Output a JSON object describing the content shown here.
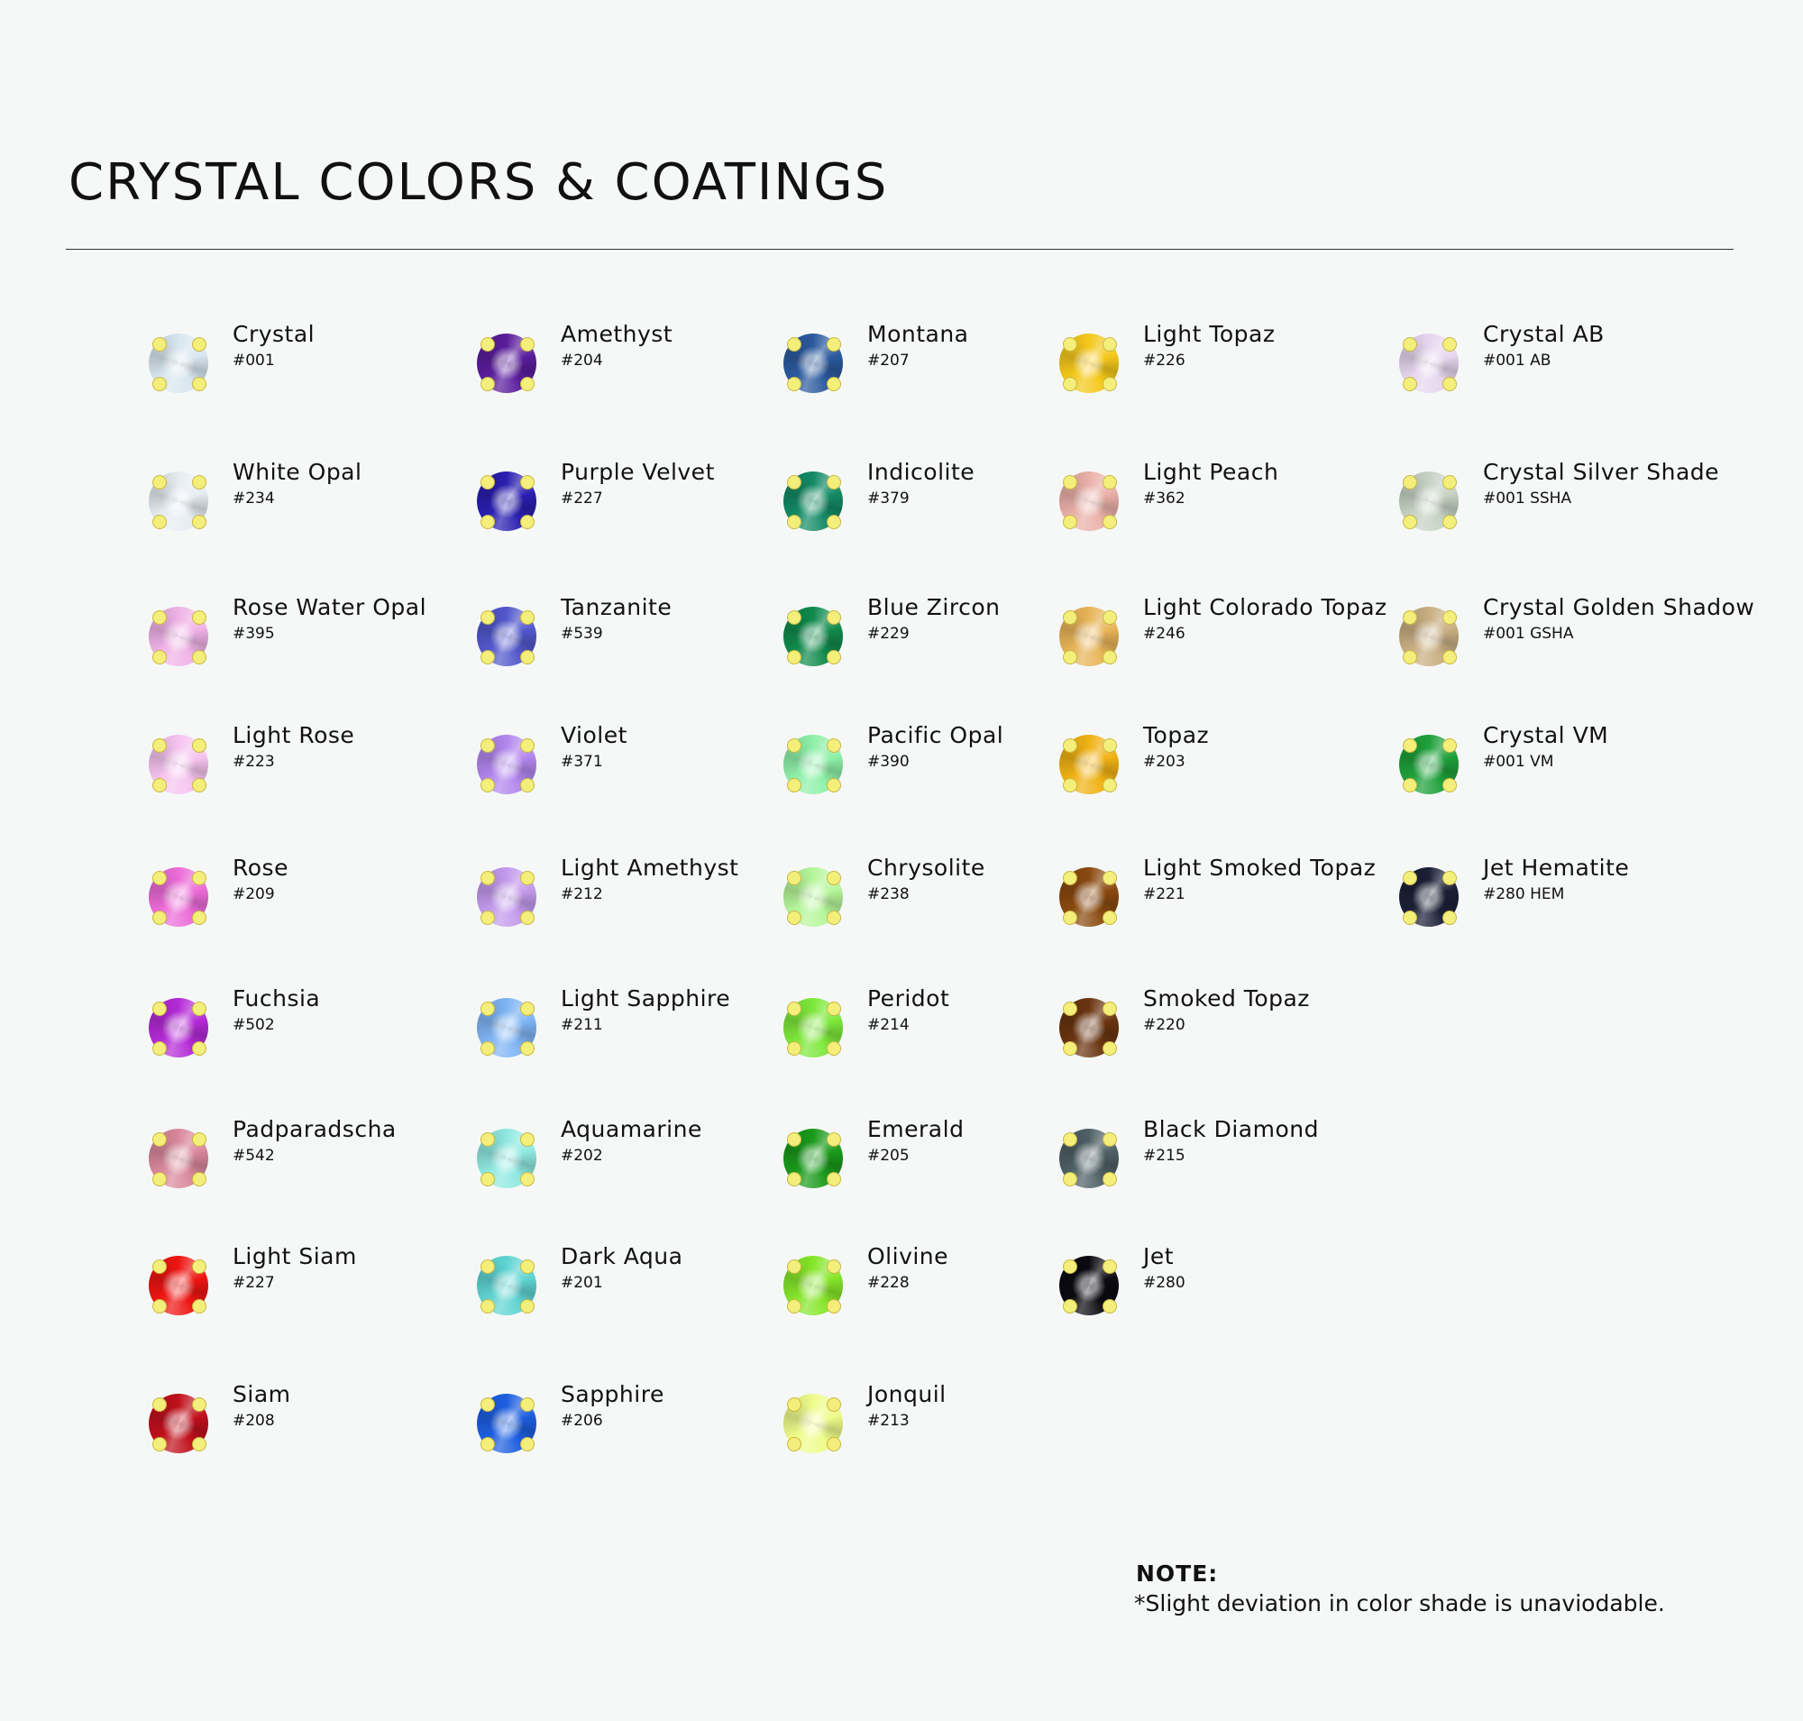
{
  "title": "CRYSTAL COLORS & COATINGS",
  "columns": [
    [
      {
        "name": "Crystal",
        "code": "#001",
        "color": "#d8e6ef"
      },
      {
        "name": "White Opal",
        "code": "#234",
        "color": "#e6ecf2"
      },
      {
        "name": "Rose Water Opal",
        "code": "#395",
        "color": "#efb2e6"
      },
      {
        "name": "Light Rose",
        "code": "#223",
        "color": "#f6c4f0"
      },
      {
        "name": "Rose",
        "code": "#209",
        "color": "#ec6cd8"
      },
      {
        "name": "Fuchsia",
        "code": "#502",
        "color": "#b42ad6"
      },
      {
        "name": "Padparadscha",
        "code": "#542",
        "color": "#d9889c"
      },
      {
        "name": "Light Siam",
        "code": "#227",
        "color": "#ee1512"
      },
      {
        "name": "Siam",
        "code": "#208",
        "color": "#c0101c"
      }
    ],
    [
      {
        "name": "Amethyst",
        "code": "#204",
        "color": "#5a1d9c"
      },
      {
        "name": "Purple Velvet",
        "code": "#227",
        "color": "#2a1fb0"
      },
      {
        "name": "Tanzanite",
        "code": "#539",
        "color": "#5258cc"
      },
      {
        "name": "Violet",
        "code": "#371",
        "color": "#b286ee"
      },
      {
        "name": "Light Amethyst",
        "code": "#212",
        "color": "#c39aec"
      },
      {
        "name": "Light Sapphire",
        "code": "#211",
        "color": "#7fb4f4"
      },
      {
        "name": "Aquamarine",
        "code": "#202",
        "color": "#8ee8e0"
      },
      {
        "name": "Dark Aqua",
        "code": "#201",
        "color": "#5fd4d2"
      },
      {
        "name": "Sapphire",
        "code": "#206",
        "color": "#1d5ee0"
      }
    ],
    [
      {
        "name": "Montana",
        "code": "#207",
        "color": "#2b5a9e"
      },
      {
        "name": "Indicolite",
        "code": "#379",
        "color": "#138a64"
      },
      {
        "name": "Blue Zircon",
        "code": "#229",
        "color": "#108a4c"
      },
      {
        "name": "Pacific Opal",
        "code": "#390",
        "color": "#8ef0a8"
      },
      {
        "name": "Chrysolite",
        "code": "#238",
        "color": "#b6f69a"
      },
      {
        "name": "Peridot",
        "code": "#214",
        "color": "#7de83a"
      },
      {
        "name": "Emerald",
        "code": "#205",
        "color": "#1a9a1a"
      },
      {
        "name": "Olivine",
        "code": "#228",
        "color": "#86e62a"
      },
      {
        "name": "Jonquil",
        "code": "#213",
        "color": "#eefc8a"
      }
    ],
    [
      {
        "name": "Light Topaz",
        "code": "#226",
        "color": "#f4c81a"
      },
      {
        "name": "Light Peach",
        "code": "#362",
        "color": "#eab0a8"
      },
      {
        "name": "Light Colorado Topaz",
        "code": "#246",
        "color": "#e8b458"
      },
      {
        "name": "Topaz",
        "code": "#203",
        "color": "#f0b214"
      },
      {
        "name": "Light Smoked Topaz",
        "code": "#221",
        "color": "#8a4a10"
      },
      {
        "name": "Smoked Topaz",
        "code": "#220",
        "color": "#6a3410"
      },
      {
        "name": "Black Diamond",
        "code": "#215",
        "color": "#4e6066"
      },
      {
        "name": "Jet",
        "code": "#280",
        "color": "#0a0a10"
      }
    ],
    [
      {
        "name": "Crystal AB",
        "code": "#001 AB",
        "color": "#e6d6ee"
      },
      {
        "name": "Crystal Silver Shade",
        "code": "#001 SSHA",
        "color": "#c6d2c4"
      },
      {
        "name": "Crystal Golden Shadow",
        "code": "#001 GSHA",
        "color": "#c8ae82"
      },
      {
        "name": "Crystal VM",
        "code": "#001 VM",
        "color": "#1ea03a"
      },
      {
        "name": "Jet Hematite",
        "code": "#280 HEM",
        "color": "#1c2036"
      }
    ]
  ],
  "note": {
    "title": "NOTE:",
    "text": "*Slight deviation in color shade is unaviodable."
  }
}
